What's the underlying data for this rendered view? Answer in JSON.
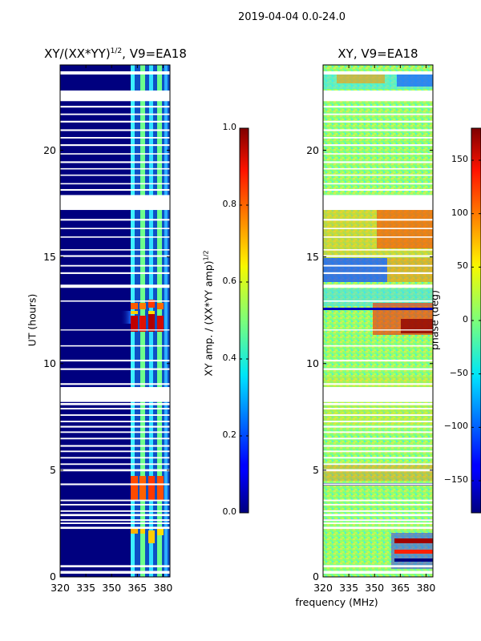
{
  "suptitle": "2019-04-04 0.0-24.0",
  "xlabel": "frequency (MHz)",
  "chart_data": [
    {
      "type": "heatmap",
      "title_main": "XY/(XX*YY)",
      "title_sup": "1/2",
      "title_rest": ", V9=EA18",
      "xlabel": "",
      "ylabel": "UT (hours)",
      "xlim": [
        320,
        384
      ],
      "ylim": [
        0,
        24
      ],
      "xticks": [
        "320",
        "335",
        "350",
        "365",
        "380"
      ],
      "yticks": [
        "0",
        "5",
        "10",
        "15",
        "20"
      ],
      "colorbar": {
        "label": "XY amp. / (XX*YY amp)",
        "label_sup": "1/2",
        "vmin": 0.0,
        "vmax": 1.0,
        "ticks": [
          "0.0",
          "0.2",
          "0.4",
          "0.6",
          "0.8",
          "1.0"
        ]
      },
      "bright_channels_mhz": [
        365,
        370,
        375,
        380
      ],
      "high_amplitude_intervals_ut": [
        [
          1.8,
          2.2
        ],
        [
          3.2,
          4.8
        ],
        [
          11.2,
          12.8
        ]
      ]
    },
    {
      "type": "heatmap",
      "title": "XY, V9=EA18",
      "xlabel": "frequency (MHz)",
      "ylabel": "",
      "xlim": [
        320,
        384
      ],
      "ylim": [
        0,
        24
      ],
      "xticks": [
        "320",
        "335",
        "350",
        "365",
        "380"
      ],
      "yticks": [
        "0",
        "5",
        "10",
        "15",
        "20"
      ],
      "colorbar": {
        "label": "phase (deg)",
        "vmin": -180,
        "vmax": 180,
        "ticks": [
          "−150",
          "−100",
          "−50",
          "0",
          "50",
          "100",
          "150"
        ]
      }
    }
  ]
}
